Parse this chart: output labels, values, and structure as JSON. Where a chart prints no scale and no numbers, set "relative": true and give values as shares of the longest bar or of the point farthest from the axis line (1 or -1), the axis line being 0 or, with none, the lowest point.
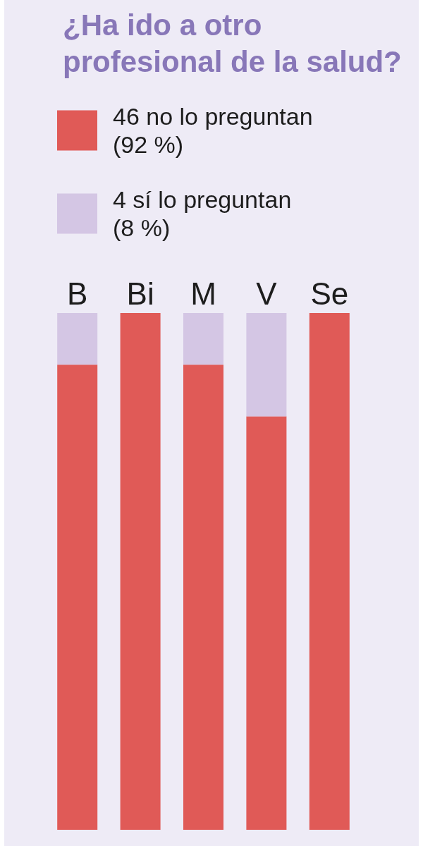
{
  "chart_data": {
    "type": "bar",
    "title": "¿Ha ido a otro profesional de la salud?",
    "categories": [
      "B",
      "Bi",
      "M",
      "V",
      "Se"
    ],
    "series": [
      {
        "name": "46 no lo preguntan (92 %)",
        "color": "#e05a57",
        "values": [
          0.9,
          1,
          0.9,
          0.8,
          1
        ]
      },
      {
        "name": "4 sí lo preguntan (8 %)",
        "color": "#d4c6e4",
        "values": [
          0.1,
          0,
          0.1,
          0.2,
          0
        ]
      }
    ],
    "stacked": true,
    "relative": true,
    "legend": "top left",
    "tick_labels": "x"
  }
}
